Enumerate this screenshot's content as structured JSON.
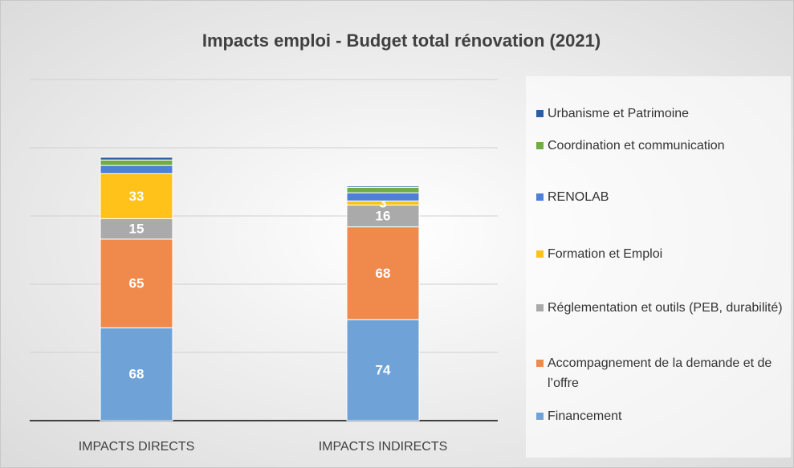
{
  "chart_data": {
    "type": "stacked_bar",
    "title": "Impacts emploi - Budget total rénovation (2021)",
    "categories": [
      "IMPACTS DIRECTS",
      "IMPACTS INDIRECTS"
    ],
    "series": [
      {
        "name": "Financement",
        "color": "#6fa3d8",
        "values": [
          68,
          74
        ],
        "show_labels": true
      },
      {
        "name": "Accompagnement de la demande et de l’offre",
        "color": "#ef8a4c",
        "values": [
          65,
          68
        ],
        "show_labels": true
      },
      {
        "name": "Réglementation et outils (PEB, durabilité)",
        "color": "#aaaaaa",
        "values": [
          15,
          16
        ],
        "show_labels": true
      },
      {
        "name": "Formation et Emploi",
        "color": "#ffc21a",
        "values": [
          33,
          3
        ],
        "show_labels": true
      },
      {
        "name": "RENOLAB",
        "color": "#4f7fd6",
        "values": [
          6,
          6
        ],
        "show_labels": false
      },
      {
        "name": "Coordination et communication",
        "color": "#70ad47",
        "values": [
          4,
          4
        ],
        "show_labels": false
      },
      {
        "name": "Urbanisme et Patrimoine",
        "color": "#2b5f9e",
        "values": [
          2,
          1
        ],
        "show_labels": false
      }
    ],
    "ylim": [
      0,
      250
    ],
    "yticks": [
      0,
      50,
      100,
      150,
      200,
      250
    ],
    "grid": true,
    "tick_labels": false,
    "legend": "right"
  }
}
